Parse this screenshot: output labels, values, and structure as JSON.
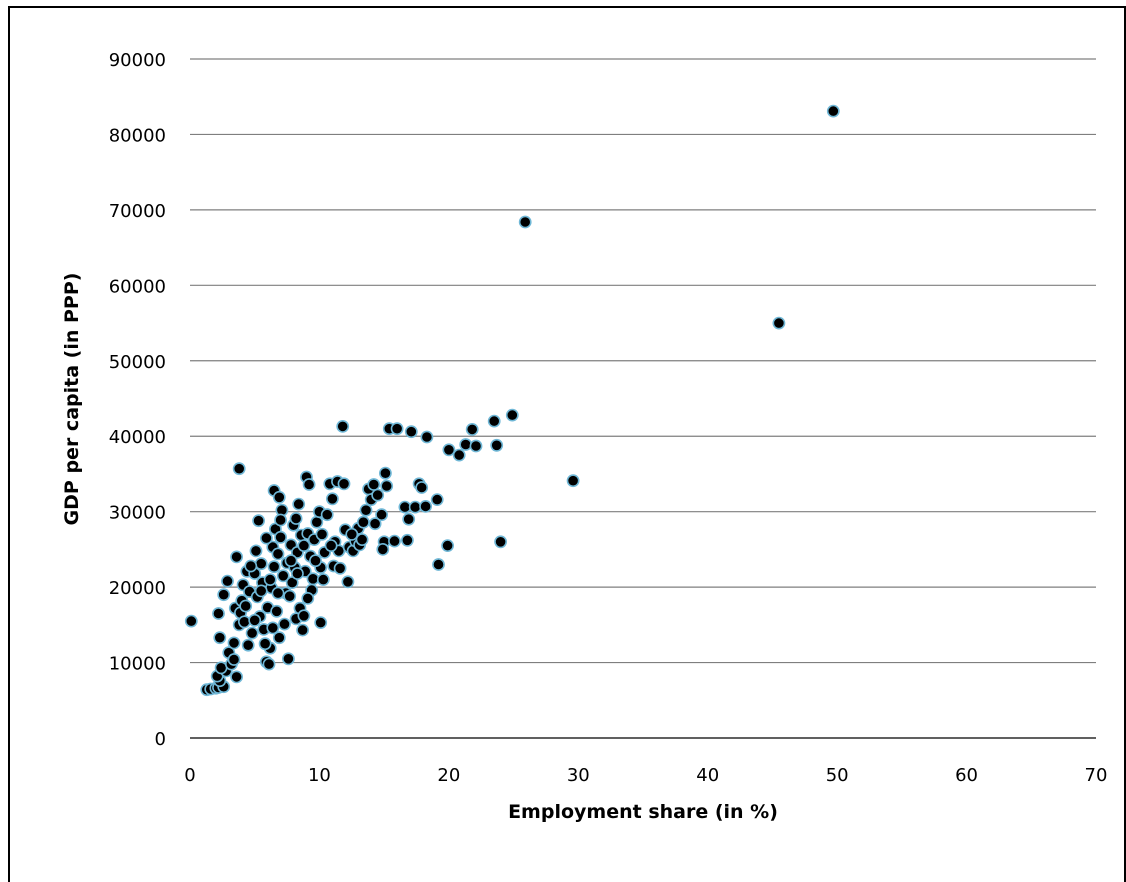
{
  "chart_data": {
    "type": "scatter",
    "xlabel": "Employment share (in %)",
    "ylabel": "GDP per capita  (in PPP)",
    "xlim": [
      0,
      70
    ],
    "ylim": [
      0,
      90000
    ],
    "x_ticks": [
      "0",
      "10",
      "20",
      "30",
      "40",
      "50",
      "60",
      "70"
    ],
    "y_ticks": [
      "0",
      "10000",
      "20000",
      "30000",
      "40000",
      "50000",
      "60000",
      "70000",
      "80000",
      "90000"
    ],
    "grid": "horizontal",
    "legend": "none",
    "marker_fill": "#000000",
    "marker_edge": "#6fb7d6",
    "points": [
      [
        0.1,
        15500
      ],
      [
        1.3,
        6400
      ],
      [
        1.6,
        6500
      ],
      [
        2.0,
        6600
      ],
      [
        2.2,
        6700
      ],
      [
        2.6,
        6800
      ],
      [
        2.3,
        7600
      ],
      [
        2.1,
        8200
      ],
      [
        2.8,
        8900
      ],
      [
        2.4,
        9300
      ],
      [
        3.2,
        9800
      ],
      [
        3.6,
        8100
      ],
      [
        3.0,
        11300
      ],
      [
        3.4,
        10400
      ],
      [
        2.3,
        13300
      ],
      [
        2.2,
        16500
      ],
      [
        2.6,
        19000
      ],
      [
        2.9,
        20800
      ],
      [
        3.5,
        17200
      ],
      [
        3.8,
        15000
      ],
      [
        3.9,
        16600
      ],
      [
        3.6,
        24000
      ],
      [
        3.8,
        35700
      ],
      [
        4.1,
        20300
      ],
      [
        4.4,
        22100
      ],
      [
        4.6,
        19400
      ],
      [
        4.0,
        18200
      ],
      [
        4.2,
        15400
      ],
      [
        4.5,
        12300
      ],
      [
        4.8,
        13900
      ],
      [
        5.0,
        21800
      ],
      [
        5.1,
        24800
      ],
      [
        5.3,
        28800
      ],
      [
        5.5,
        23100
      ],
      [
        5.6,
        20600
      ],
      [
        5.2,
        18700
      ],
      [
        5.4,
        16100
      ],
      [
        5.7,
        14400
      ],
      [
        5.9,
        10100
      ],
      [
        6.1,
        9800
      ],
      [
        6.2,
        11900
      ],
      [
        5.8,
        12500
      ],
      [
        6.0,
        17300
      ],
      [
        6.3,
        19900
      ],
      [
        6.5,
        22700
      ],
      [
        6.4,
        25300
      ],
      [
        6.6,
        27700
      ],
      [
        6.5,
        32800
      ],
      [
        6.9,
        31900
      ],
      [
        7.1,
        30200
      ],
      [
        7.0,
        26600
      ],
      [
        6.8,
        24400
      ],
      [
        7.2,
        21500
      ],
      [
        7.4,
        19200
      ],
      [
        6.7,
        16800
      ],
      [
        7.3,
        15100
      ],
      [
        6.9,
        13300
      ],
      [
        7.6,
        10500
      ],
      [
        7.5,
        23200
      ],
      [
        7.8,
        25600
      ],
      [
        8.0,
        28200
      ],
      [
        8.2,
        29100
      ],
      [
        8.4,
        31000
      ],
      [
        8.6,
        26900
      ],
      [
        8.3,
        24600
      ],
      [
        8.1,
        22600
      ],
      [
        7.9,
        20600
      ],
      [
        7.7,
        18800
      ],
      [
        8.5,
        17200
      ],
      [
        8.2,
        15800
      ],
      [
        8.7,
        14300
      ],
      [
        9.0,
        34600
      ],
      [
        9.2,
        33600
      ],
      [
        9.1,
        27100
      ],
      [
        9.3,
        24100
      ],
      [
        8.9,
        22100
      ],
      [
        9.5,
        21100
      ],
      [
        9.4,
        19600
      ],
      [
        8.8,
        16200
      ],
      [
        9.6,
        26300
      ],
      [
        9.8,
        28600
      ],
      [
        10.0,
        30000
      ],
      [
        10.2,
        27000
      ],
      [
        10.4,
        24600
      ],
      [
        10.1,
        22600
      ],
      [
        10.3,
        21000
      ],
      [
        10.1,
        15300
      ],
      [
        10.6,
        29600
      ],
      [
        10.8,
        33700
      ],
      [
        11.0,
        31700
      ],
      [
        11.2,
        26000
      ],
      [
        11.1,
        22800
      ],
      [
        11.4,
        34000
      ],
      [
        11.5,
        24800
      ],
      [
        11.8,
        41300
      ],
      [
        11.9,
        33700
      ],
      [
        12.0,
        27600
      ],
      [
        12.2,
        20700
      ],
      [
        12.3,
        25300
      ],
      [
        12.6,
        24800
      ],
      [
        12.8,
        26100
      ],
      [
        13.0,
        27800
      ],
      [
        13.1,
        25600
      ],
      [
        13.4,
        28600
      ],
      [
        13.6,
        30200
      ],
      [
        13.8,
        33000
      ],
      [
        14.0,
        31600
      ],
      [
        14.2,
        33600
      ],
      [
        14.5,
        32200
      ],
      [
        14.8,
        29600
      ],
      [
        15.0,
        26000
      ],
      [
        15.2,
        33400
      ],
      [
        15.1,
        35100
      ],
      [
        14.9,
        25000
      ],
      [
        15.4,
        41000
      ],
      [
        15.8,
        26100
      ],
      [
        16.0,
        41000
      ],
      [
        16.6,
        30600
      ],
      [
        16.8,
        26200
      ],
      [
        16.9,
        29000
      ],
      [
        17.1,
        40600
      ],
      [
        17.4,
        30600
      ],
      [
        17.7,
        33700
      ],
      [
        17.9,
        33200
      ],
      [
        18.2,
        30700
      ],
      [
        18.3,
        39900
      ],
      [
        19.1,
        31600
      ],
      [
        19.2,
        23000
      ],
      [
        19.9,
        25500
      ],
      [
        20.0,
        38200
      ],
      [
        20.8,
        37500
      ],
      [
        21.3,
        38900
      ],
      [
        21.8,
        40900
      ],
      [
        22.1,
        38700
      ],
      [
        23.5,
        42000
      ],
      [
        23.7,
        38800
      ],
      [
        24.0,
        26000
      ],
      [
        24.9,
        42800
      ],
      [
        25.9,
        68400
      ],
      [
        29.6,
        34100
      ],
      [
        45.5,
        55000
      ],
      [
        49.7,
        83100
      ],
      [
        5.5,
        19500
      ],
      [
        6.2,
        21000
      ],
      [
        7.8,
        23500
      ],
      [
        8.8,
        25500
      ],
      [
        9.7,
        23500
      ],
      [
        10.9,
        25500
      ],
      [
        4.7,
        22800
      ],
      [
        5.9,
        26500
      ],
      [
        7.0,
        28900
      ],
      [
        8.3,
        21800
      ],
      [
        9.1,
        18500
      ],
      [
        6.8,
        19200
      ],
      [
        11.6,
        22500
      ],
      [
        12.5,
        27000
      ],
      [
        13.3,
        26300
      ],
      [
        14.3,
        28400
      ],
      [
        4.3,
        17500
      ],
      [
        5.0,
        15600
      ],
      [
        6.4,
        14600
      ],
      [
        3.4,
        12600
      ]
    ]
  }
}
